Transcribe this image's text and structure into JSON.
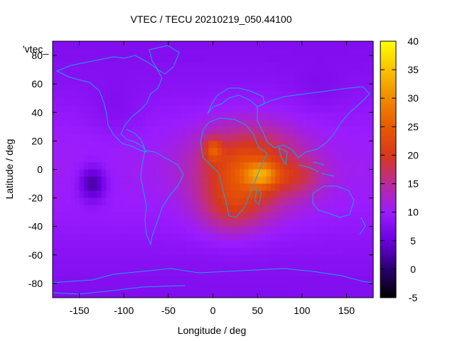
{
  "chart_data": {
    "type": "heatmap",
    "title": "VTEC / TECU 20210219_050.44100",
    "xlabel": "Longitude / deg",
    "ylabel": "Latitude / deg",
    "xlim": [
      -180,
      180
    ],
    "ylim": [
      -90,
      90
    ],
    "x_ticks": [
      "-150",
      "-100",
      "-50",
      "0",
      "50",
      "100",
      "150"
    ],
    "x_tick_values": [
      -150,
      -100,
      -50,
      0,
      50,
      100,
      150
    ],
    "y_ticks": [
      "80",
      "60",
      "40",
      "20",
      "0",
      "-20",
      "-40",
      "-60",
      "-80"
    ],
    "y_tick_values": [
      80,
      60,
      40,
      20,
      0,
      -20,
      -40,
      -60,
      -80
    ],
    "colorbar": {
      "range": [
        -5,
        40
      ],
      "ticks": [
        "40",
        "35",
        "30",
        "25",
        "20",
        "15",
        "10",
        "5",
        "0",
        "-5"
      ],
      "tick_values": [
        40,
        35,
        30,
        25,
        20,
        15,
        10,
        5,
        0,
        -5
      ]
    },
    "legend_label": "'vtec_",
    "grid": false,
    "features": [
      {
        "name": "background",
        "lon": 0,
        "lat": 0,
        "value": 9
      },
      {
        "name": "africa-max",
        "lon": 55,
        "lat": -3,
        "value": 33
      },
      {
        "name": "west-africa-peak",
        "lon": 0,
        "lat": 15,
        "value": 31
      },
      {
        "name": "pacific-min",
        "lon": -135,
        "lat": -10,
        "value": 1
      }
    ]
  }
}
